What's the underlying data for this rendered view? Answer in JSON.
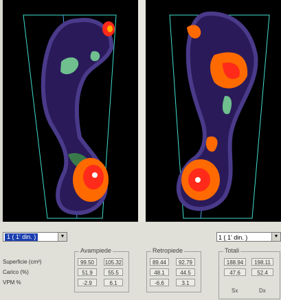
{
  "left_dropdown": {
    "value": "1 ( 1' din. )"
  },
  "right_dropdown": {
    "value": "1 ( 1' din. )"
  },
  "rows": [
    "Superficie (cm²)",
    "Carico (%)",
    "VPM %"
  ],
  "groups": {
    "avampiede": {
      "title": "Avampiede",
      "values": [
        [
          "99.50",
          "105.32"
        ],
        [
          "51.9",
          "55.5"
        ],
        [
          "-2.9",
          "6.1"
        ]
      ]
    },
    "retropiede": {
      "title": "Retropiede",
      "values": [
        [
          "89.44",
          "92.79"
        ],
        [
          "48.1",
          "44.5"
        ],
        [
          "-6.6",
          "3.1"
        ]
      ]
    },
    "totale": {
      "title": "Totali",
      "values": [
        [
          "188.94",
          "198.11"
        ],
        [
          "47.6",
          "52.4"
        ]
      ],
      "labels": [
        "Sx",
        "Dx"
      ]
    }
  },
  "colors": {
    "background": "#000000",
    "outline": "#4a3a8a",
    "low": "#2a1a5a",
    "mid": "#6fbf8f",
    "high": "#ff6a00",
    "peak": "#ff2a1a",
    "grid": "#40e0d0"
  }
}
